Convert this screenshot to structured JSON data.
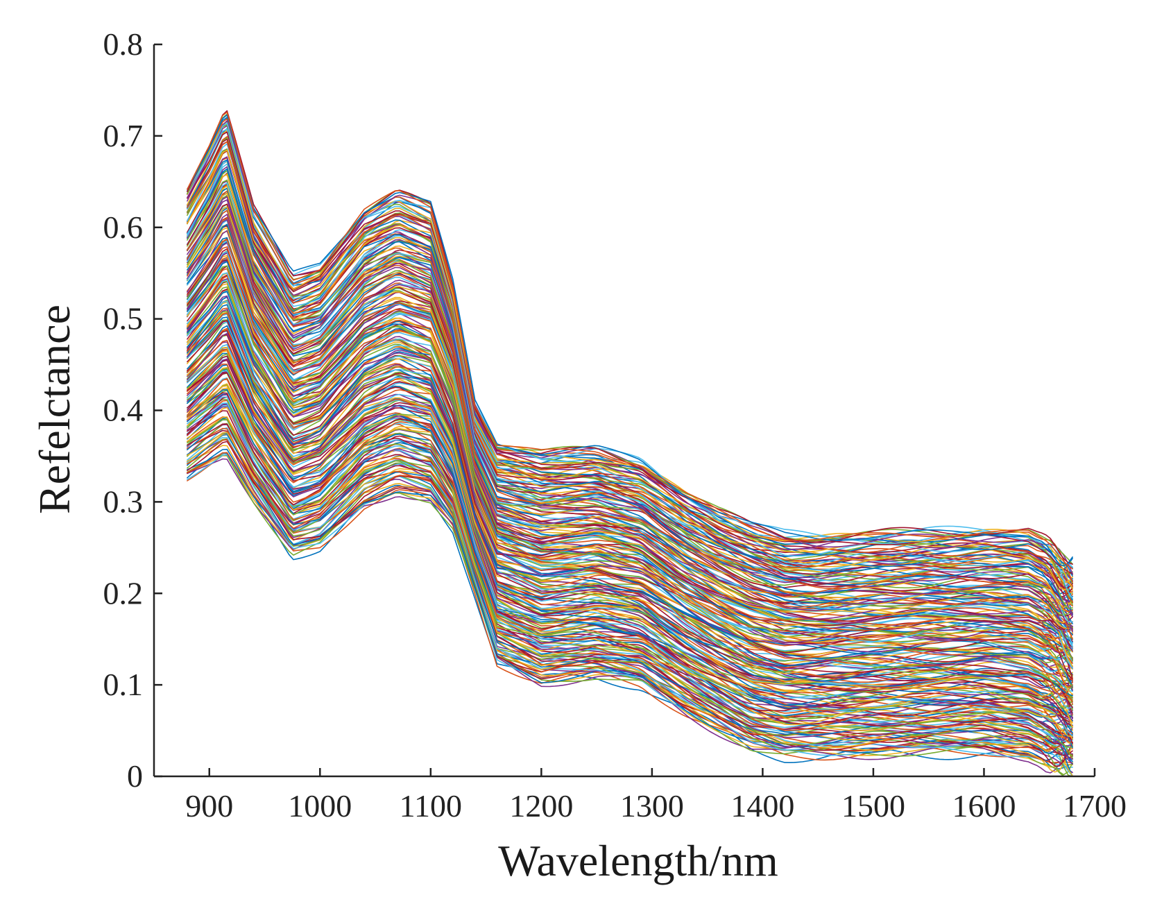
{
  "chart_data": {
    "type": "line",
    "title": "",
    "xlabel": "Wavelength/nm",
    "ylabel": "Refelctance",
    "xlim": [
      850,
      1700
    ],
    "ylim": [
      0,
      0.8
    ],
    "xticks": [
      900,
      1000,
      1100,
      1200,
      1300,
      1400,
      1500,
      1600,
      1700
    ],
    "yticks": [
      0,
      0.1,
      0.2,
      0.3,
      0.4,
      0.5,
      0.6,
      0.7,
      0.8
    ],
    "grid": false,
    "legend": "none",
    "x": [
      880,
      900,
      915,
      940,
      975,
      1000,
      1040,
      1070,
      1100,
      1120,
      1140,
      1160,
      1200,
      1250,
      1290,
      1330,
      1360,
      1390,
      1420,
      1450,
      1500,
      1550,
      1600,
      1640,
      1660,
      1680
    ],
    "envelope": {
      "upper": [
        0.645,
        0.69,
        0.73,
        0.62,
        0.548,
        0.56,
        0.62,
        0.64,
        0.625,
        0.54,
        0.41,
        0.365,
        0.355,
        0.358,
        0.345,
        0.31,
        0.29,
        0.275,
        0.265,
        0.263,
        0.265,
        0.268,
        0.27,
        0.268,
        0.255,
        0.23
      ],
      "lower": [
        0.325,
        0.34,
        0.35,
        0.3,
        0.24,
        0.25,
        0.295,
        0.31,
        0.3,
        0.27,
        0.2,
        0.125,
        0.103,
        0.108,
        0.1,
        0.07,
        0.05,
        0.03,
        0.022,
        0.022,
        0.024,
        0.025,
        0.026,
        0.02,
        0.01,
        0.005
      ]
    },
    "series_count": 240,
    "palette": [
      "#0072BD",
      "#D95319",
      "#EDB120",
      "#7E2F8E",
      "#77AC30",
      "#4DBEEE",
      "#A2142F"
    ]
  }
}
